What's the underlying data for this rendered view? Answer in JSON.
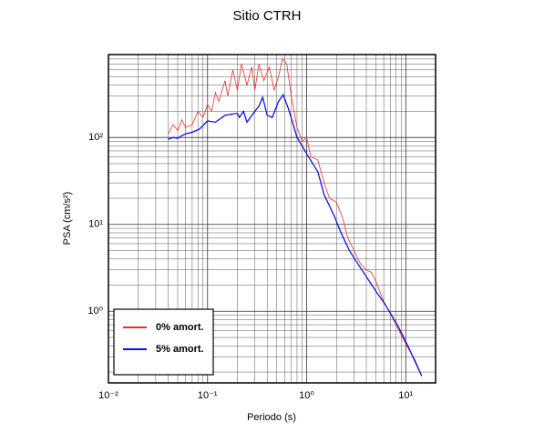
{
  "chart_data": {
    "type": "line",
    "title": "Sitio CTRH",
    "x_label": "Periodo (s)",
    "y_label": "PSA (cm/s²)",
    "log_x": true,
    "log_y": true,
    "grid": true,
    "legend_position": "lower left",
    "xlim": [
      0.01,
      20
    ],
    "ylim": [
      0.15,
      900
    ],
    "xticks": [
      {
        "value": 0.01,
        "label": "10⁻²"
      },
      {
        "value": 0.1,
        "label": "10⁻¹"
      },
      {
        "value": 1,
        "label": "10⁰"
      },
      {
        "value": 10,
        "label": "10¹"
      }
    ],
    "yticks": [
      {
        "value": 1,
        "label": "10⁰"
      },
      {
        "value": 10,
        "label": "10¹"
      },
      {
        "value": 100,
        "label": "10²"
      }
    ],
    "xminorticks": [
      0.02,
      0.03,
      0.04,
      0.05,
      0.06,
      0.07,
      0.08,
      0.09,
      0.2,
      0.3,
      0.4,
      0.5,
      0.6,
      0.7,
      0.8,
      0.9,
      2,
      3,
      4,
      5,
      6,
      7,
      8,
      9,
      20
    ],
    "yminorticks": [
      0.2,
      0.3,
      0.4,
      0.5,
      0.6,
      0.7,
      0.8,
      0.9,
      2,
      3,
      4,
      5,
      6,
      7,
      8,
      9,
      20,
      30,
      40,
      50,
      60,
      70,
      80,
      90,
      200,
      300,
      400,
      500,
      600,
      700,
      800,
      900
    ],
    "series": [
      {
        "name": "0% amort.",
        "color": "#e8302a",
        "x": [
          0.04,
          0.045,
          0.05,
          0.055,
          0.06,
          0.07,
          0.08,
          0.09,
          0.1,
          0.11,
          0.12,
          0.13,
          0.15,
          0.16,
          0.18,
          0.2,
          0.22,
          0.25,
          0.28,
          0.3,
          0.33,
          0.37,
          0.42,
          0.47,
          0.52,
          0.57,
          0.63,
          0.7,
          0.8,
          0.9,
          1.0,
          1.1,
          1.3,
          1.5,
          1.7,
          2.0,
          2.3,
          2.6,
          3.0,
          3.5,
          4.0,
          4.5,
          5.0,
          6.0,
          8,
          10,
          12.5,
          14.5
        ],
        "values": [
          110,
          140,
          120,
          160,
          130,
          140,
          200,
          170,
          240,
          200,
          330,
          260,
          450,
          300,
          600,
          350,
          700,
          400,
          650,
          350,
          700,
          450,
          650,
          350,
          500,
          800,
          700,
          300,
          130,
          90,
          100,
          60,
          55,
          30,
          20,
          18,
          12,
          7,
          5,
          3.5,
          3,
          2.8,
          2.2,
          1.3,
          0.7,
          0.42,
          0.27,
          0.18
        ]
      },
      {
        "name": "5% amort.",
        "color": "#1010e0",
        "x": [
          0.04,
          0.045,
          0.05,
          0.055,
          0.06,
          0.07,
          0.083,
          0.1,
          0.12,
          0.15,
          0.2,
          0.21,
          0.23,
          0.25,
          0.29,
          0.33,
          0.36,
          0.4,
          0.45,
          0.52,
          0.58,
          0.65,
          0.72,
          0.8,
          0.9,
          1.0,
          1.3,
          1.5,
          1.9,
          2.2,
          2.7,
          3.3,
          4.1,
          5,
          6.2,
          8.5,
          10.5,
          12.5,
          14.5
        ],
        "values": [
          95,
          100,
          98,
          105,
          110,
          115,
          125,
          155,
          150,
          180,
          190,
          170,
          200,
          150,
          190,
          230,
          290,
          180,
          170,
          260,
          310,
          220,
          150,
          100,
          80,
          65,
          40,
          22,
          12.5,
          8.2,
          5,
          3.5,
          2.4,
          1.7,
          1.2,
          0.65,
          0.4,
          0.26,
          0.18
        ]
      }
    ]
  }
}
